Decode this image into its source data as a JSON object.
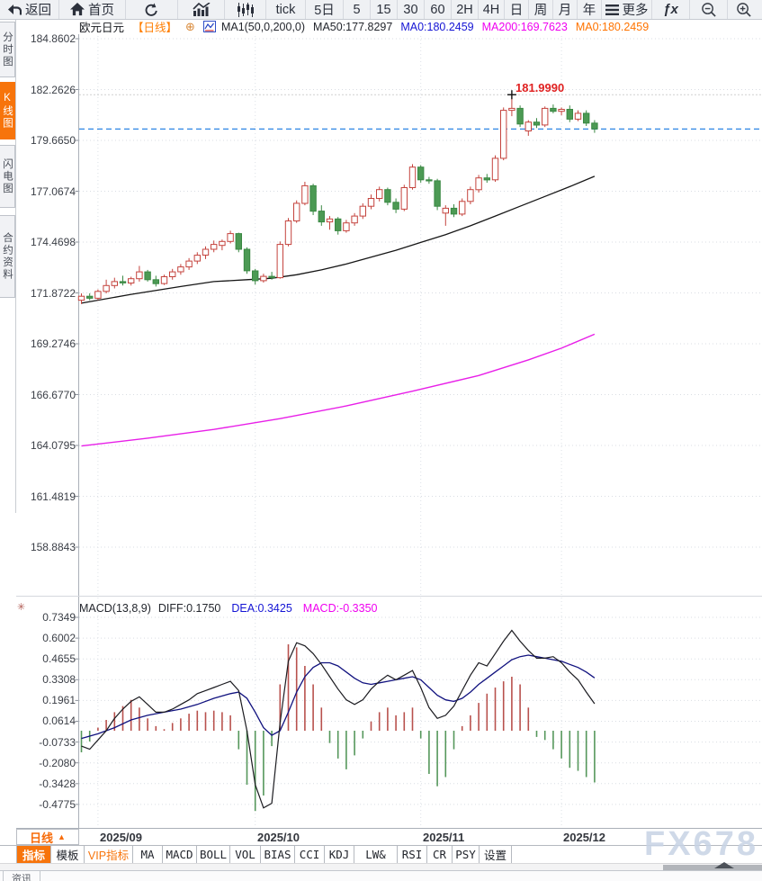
{
  "toolbar": {
    "items": [
      {
        "label": "返回",
        "icon": "back"
      },
      {
        "label": "首页",
        "icon": "home"
      },
      {
        "label": "",
        "icon": "refresh"
      },
      {
        "label": "",
        "icon": "area-chart"
      },
      {
        "label": "",
        "icon": "candlestick"
      },
      {
        "label": "tick"
      },
      {
        "label": "5日"
      },
      {
        "label": "5"
      },
      {
        "label": "15"
      },
      {
        "label": "30"
      },
      {
        "label": "60"
      },
      {
        "label": "2H"
      },
      {
        "label": "4H"
      },
      {
        "label": "日"
      },
      {
        "label": "周"
      },
      {
        "label": "月"
      },
      {
        "label": "年"
      },
      {
        "label": "更多",
        "icon": "menu"
      },
      {
        "label": "ƒx",
        "icon": "fx"
      },
      {
        "label": "",
        "icon": "zoom-out"
      },
      {
        "label": "",
        "icon": "zoom-in"
      }
    ]
  },
  "sidebar": {
    "tabs": [
      {
        "label": "分时图"
      },
      {
        "label": "K线图"
      },
      {
        "label": "闪电图"
      },
      {
        "label": "合约资料"
      }
    ],
    "active_index": 1
  },
  "chart_header": {
    "symbol": "欧元日元",
    "period": "【日线】",
    "plus_icon": "⊕",
    "ma_settings": "MA1(50,0,200,0)",
    "ma50": "MA50:177.8297",
    "ma_blue": "MA0:180.2459",
    "ma200": "MA200:169.7623",
    "ma_orange": "MA0:180.2459"
  },
  "macd_header": {
    "formula": "MACD(13,8,9)",
    "diff": "DIFF:0.1750",
    "dea": "DEA:0.3425",
    "macd": "MACD:-0.3350",
    "settings_icon": "✳"
  },
  "price_label": "181.9990",
  "x_axis": {
    "selector": "日线",
    "selector_arrow": "▲",
    "months": [
      "2025/09",
      "2025/10",
      "2025/11",
      "2025/12"
    ]
  },
  "indicator_bar": {
    "items": [
      "指标",
      "模板",
      "VIP指标",
      "MA",
      "MACD",
      "BOLL",
      "VOL",
      "BIAS",
      "CCI",
      "KDJ",
      "LW&",
      "RSI",
      "CR",
      "PSY",
      "设置"
    ]
  },
  "watermark": "FX678",
  "news_tab": "资讯",
  "colors": {
    "accent_orange": "#f7740b",
    "up_candle": "#c4433d",
    "down_candle": "#4c9a54",
    "ma50_line": "#161616",
    "ma200_line": "#e81fe8",
    "diff_line": "#1b1b20",
    "dea_line": "#11127f",
    "current_price_line": "#2e86e5",
    "high_label_red": "#e02222"
  },
  "chart_data": {
    "type": "candlestick",
    "title": "欧元日元 (EUR/JPY) 日线 with MA50/MA200 and MACD(13,8,9)",
    "price_ticks": [
      184.8602,
      182.2626,
      179.665,
      177.0674,
      174.4698,
      171.8722,
      169.2746,
      166.677,
      164.0795,
      161.4819,
      158.8843
    ],
    "current_price": 180.2459,
    "session_high": {
      "value": 181.999,
      "index": 52
    },
    "x_months": [
      {
        "label": "2025/09",
        "index": 2
      },
      {
        "label": "2025/10",
        "index": 21
      },
      {
        "label": "2025/11",
        "index": 41
      },
      {
        "label": "2025/12",
        "index": 58
      }
    ],
    "candles_ohlc": [
      [
        171.5,
        171.85,
        171.3,
        171.7
      ],
      [
        171.7,
        171.85,
        171.5,
        171.6
      ],
      [
        171.6,
        172.05,
        171.5,
        171.95
      ],
      [
        171.95,
        172.55,
        171.85,
        172.25
      ],
      [
        172.25,
        172.65,
        172.1,
        172.45
      ],
      [
        172.45,
        172.75,
        172.25,
        172.38
      ],
      [
        172.38,
        172.7,
        172.25,
        172.6
      ],
      [
        172.6,
        173.25,
        172.45,
        172.95
      ],
      [
        172.95,
        173.05,
        172.45,
        172.55
      ],
      [
        172.55,
        172.75,
        172.2,
        172.35
      ],
      [
        172.35,
        172.8,
        172.28,
        172.7
      ],
      [
        172.7,
        173.1,
        172.55,
        172.95
      ],
      [
        172.95,
        173.35,
        172.8,
        173.2
      ],
      [
        173.2,
        173.65,
        173.05,
        173.5
      ],
      [
        173.5,
        173.95,
        173.35,
        173.8
      ],
      [
        173.8,
        174.25,
        173.6,
        174.1
      ],
      [
        174.1,
        174.55,
        173.95,
        174.35
      ],
      [
        174.3,
        174.6,
        174.05,
        174.5
      ],
      [
        174.5,
        175.05,
        174.4,
        174.9
      ],
      [
        174.9,
        174.95,
        173.95,
        174.1
      ],
      [
        174.1,
        174.2,
        172.85,
        173.0
      ],
      [
        173.0,
        173.1,
        172.3,
        172.5
      ],
      [
        172.5,
        172.85,
        172.4,
        172.72
      ],
      [
        172.72,
        172.95,
        172.55,
        172.65
      ],
      [
        172.65,
        174.5,
        172.6,
        174.35
      ],
      [
        174.35,
        175.7,
        174.25,
        175.55
      ],
      [
        175.55,
        176.6,
        175.45,
        176.45
      ],
      [
        176.45,
        177.55,
        176.35,
        177.35
      ],
      [
        177.35,
        177.45,
        175.85,
        176.05
      ],
      [
        176.05,
        176.35,
        175.3,
        175.5
      ],
      [
        175.5,
        175.8,
        175.1,
        175.65
      ],
      [
        175.65,
        175.75,
        174.85,
        175.05
      ],
      [
        175.05,
        175.6,
        174.95,
        175.45
      ],
      [
        175.45,
        175.95,
        175.3,
        175.8
      ],
      [
        175.8,
        176.45,
        175.65,
        176.3
      ],
      [
        176.3,
        176.9,
        176.15,
        176.7
      ],
      [
        176.7,
        177.3,
        176.55,
        177.15
      ],
      [
        177.15,
        177.25,
        176.35,
        176.5
      ],
      [
        176.5,
        176.7,
        175.95,
        176.15
      ],
      [
        176.15,
        177.4,
        176.05,
        177.25
      ],
      [
        177.25,
        178.45,
        177.15,
        178.3
      ],
      [
        178.3,
        178.4,
        177.5,
        177.65
      ],
      [
        177.65,
        177.8,
        177.45,
        177.6
      ],
      [
        177.6,
        177.7,
        176.1,
        176.3
      ],
      [
        175.95,
        176.35,
        175.3,
        176.2
      ],
      [
        176.2,
        176.4,
        175.75,
        175.9
      ],
      [
        175.9,
        176.7,
        175.8,
        176.55
      ],
      [
        176.55,
        177.3,
        176.4,
        177.15
      ],
      [
        177.15,
        177.9,
        177.0,
        177.75
      ],
      [
        177.75,
        177.95,
        177.5,
        177.65
      ],
      [
        177.65,
        178.9,
        177.55,
        178.75
      ],
      [
        178.75,
        181.35,
        178.65,
        181.2
      ],
      [
        181.2,
        182.0,
        180.9,
        181.3
      ],
      [
        181.3,
        181.45,
        180.35,
        180.5
      ],
      [
        180.15,
        180.7,
        179.9,
        180.6
      ],
      [
        180.6,
        180.8,
        180.3,
        180.45
      ],
      [
        180.45,
        181.4,
        180.35,
        181.3
      ],
      [
        181.3,
        181.5,
        181.05,
        181.15
      ],
      [
        181.15,
        181.35,
        180.95,
        181.25
      ],
      [
        181.25,
        181.45,
        180.6,
        180.75
      ],
      [
        180.75,
        181.2,
        180.65,
        181.05
      ],
      [
        181.05,
        181.2,
        180.4,
        180.55
      ],
      [
        180.55,
        180.7,
        180.05,
        180.25
      ]
    ],
    "ma50_points": [
      [
        0,
        171.35
      ],
      [
        6,
        171.8
      ],
      [
        12,
        172.2
      ],
      [
        16,
        172.45
      ],
      [
        20,
        172.55
      ],
      [
        23,
        172.62
      ],
      [
        26,
        172.8
      ],
      [
        29,
        173.05
      ],
      [
        32,
        173.35
      ],
      [
        35,
        173.7
      ],
      [
        38,
        174.05
      ],
      [
        41,
        174.45
      ],
      [
        44,
        174.85
      ],
      [
        47,
        175.3
      ],
      [
        50,
        175.8
      ],
      [
        53,
        176.3
      ],
      [
        56,
        176.8
      ],
      [
        59,
        177.3
      ],
      [
        62,
        177.83
      ]
    ],
    "ma200_points": [
      [
        0,
        164.05
      ],
      [
        8,
        164.45
      ],
      [
        16,
        164.9
      ],
      [
        24,
        165.45
      ],
      [
        32,
        166.1
      ],
      [
        40,
        166.85
      ],
      [
        48,
        167.65
      ],
      [
        54,
        168.45
      ],
      [
        58,
        169.05
      ],
      [
        62,
        169.76
      ]
    ],
    "macd": {
      "params": "13,8,9",
      "diff_last": 0.175,
      "dea_last": 0.3425,
      "hist_last": -0.335,
      "ticks": [
        0.7349,
        0.6002,
        0.4655,
        0.3308,
        0.1961,
        0.0614,
        -0.0733,
        -0.208,
        -0.3428,
        -0.4775
      ],
      "hist": [
        -0.14,
        -0.07,
        0.02,
        0.07,
        0.12,
        0.16,
        0.2,
        0.15,
        0.08,
        0.03,
        0.01,
        0.05,
        0.08,
        0.11,
        0.13,
        0.12,
        0.13,
        0.12,
        0.1,
        -0.12,
        -0.35,
        -0.52,
        -0.42,
        -0.1,
        0.3,
        0.56,
        0.54,
        0.42,
        0.3,
        0.15,
        -0.08,
        -0.18,
        -0.25,
        -0.16,
        -0.05,
        0.06,
        0.12,
        0.15,
        0.1,
        0.12,
        0.15,
        -0.05,
        -0.28,
        -0.36,
        -0.3,
        -0.12,
        0.03,
        0.1,
        0.18,
        0.24,
        0.28,
        0.32,
        0.35,
        0.3,
        0.15,
        -0.04,
        -0.06,
        -0.12,
        -0.18,
        -0.24,
        -0.26,
        -0.3,
        -0.335
      ],
      "diff_points": [
        [
          0,
          -0.1
        ],
        [
          1,
          -0.12
        ],
        [
          2,
          -0.06
        ],
        [
          3,
          0.0
        ],
        [
          4,
          0.08
        ],
        [
          5,
          0.14
        ],
        [
          6,
          0.19
        ],
        [
          7,
          0.22
        ],
        [
          8,
          0.17
        ],
        [
          9,
          0.12
        ],
        [
          10,
          0.12
        ],
        [
          11,
          0.14
        ],
        [
          12,
          0.17
        ],
        [
          13,
          0.2
        ],
        [
          14,
          0.24
        ],
        [
          15,
          0.26
        ],
        [
          16,
          0.28
        ],
        [
          17,
          0.3
        ],
        [
          18,
          0.32
        ],
        [
          19,
          0.26
        ],
        [
          20,
          0.0
        ],
        [
          21,
          -0.35
        ],
        [
          22,
          -0.5
        ],
        [
          23,
          -0.47
        ],
        [
          24,
          0.05
        ],
        [
          25,
          0.45
        ],
        [
          26,
          0.57
        ],
        [
          27,
          0.55
        ],
        [
          28,
          0.5
        ],
        [
          29,
          0.43
        ],
        [
          30,
          0.35
        ],
        [
          31,
          0.27
        ],
        [
          32,
          0.2
        ],
        [
          33,
          0.17
        ],
        [
          34,
          0.2
        ],
        [
          35,
          0.27
        ],
        [
          36,
          0.32
        ],
        [
          37,
          0.36
        ],
        [
          38,
          0.33
        ],
        [
          39,
          0.36
        ],
        [
          40,
          0.39
        ],
        [
          41,
          0.28
        ],
        [
          42,
          0.15
        ],
        [
          43,
          0.08
        ],
        [
          44,
          0.1
        ],
        [
          45,
          0.16
        ],
        [
          46,
          0.26
        ],
        [
          47,
          0.36
        ],
        [
          48,
          0.44
        ],
        [
          49,
          0.42
        ],
        [
          50,
          0.5
        ],
        [
          51,
          0.58
        ],
        [
          52,
          0.65
        ],
        [
          53,
          0.58
        ],
        [
          54,
          0.52
        ],
        [
          55,
          0.47
        ],
        [
          56,
          0.47
        ],
        [
          57,
          0.48
        ],
        [
          58,
          0.44
        ],
        [
          59,
          0.38
        ],
        [
          60,
          0.33
        ],
        [
          61,
          0.25
        ],
        [
          62,
          0.175
        ]
      ],
      "dea_points": [
        [
          0,
          -0.05
        ],
        [
          2,
          -0.02
        ],
        [
          4,
          0.02
        ],
        [
          6,
          0.07
        ],
        [
          8,
          0.1
        ],
        [
          10,
          0.12
        ],
        [
          12,
          0.14
        ],
        [
          14,
          0.17
        ],
        [
          16,
          0.21
        ],
        [
          18,
          0.24
        ],
        [
          19,
          0.25
        ],
        [
          20,
          0.21
        ],
        [
          21,
          0.12
        ],
        [
          22,
          0.02
        ],
        [
          23,
          -0.03
        ],
        [
          24,
          0.0
        ],
        [
          25,
          0.12
        ],
        [
          26,
          0.25
        ],
        [
          27,
          0.35
        ],
        [
          28,
          0.41
        ],
        [
          29,
          0.44
        ],
        [
          30,
          0.44
        ],
        [
          31,
          0.42
        ],
        [
          32,
          0.38
        ],
        [
          33,
          0.34
        ],
        [
          34,
          0.31
        ],
        [
          35,
          0.3
        ],
        [
          36,
          0.31
        ],
        [
          37,
          0.32
        ],
        [
          38,
          0.33
        ],
        [
          39,
          0.34
        ],
        [
          40,
          0.35
        ],
        [
          41,
          0.33
        ],
        [
          42,
          0.28
        ],
        [
          43,
          0.23
        ],
        [
          44,
          0.2
        ],
        [
          45,
          0.19
        ],
        [
          46,
          0.21
        ],
        [
          47,
          0.25
        ],
        [
          48,
          0.3
        ],
        [
          49,
          0.34
        ],
        [
          50,
          0.38
        ],
        [
          51,
          0.42
        ],
        [
          52,
          0.46
        ],
        [
          53,
          0.48
        ],
        [
          54,
          0.49
        ],
        [
          55,
          0.48
        ],
        [
          56,
          0.47
        ],
        [
          57,
          0.46
        ],
        [
          58,
          0.45
        ],
        [
          59,
          0.43
        ],
        [
          60,
          0.41
        ],
        [
          61,
          0.38
        ],
        [
          62,
          0.3425
        ]
      ]
    }
  }
}
